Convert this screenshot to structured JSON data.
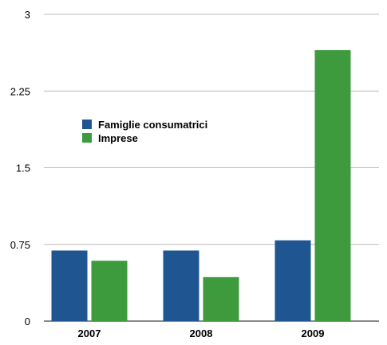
{
  "chart_data": {
    "type": "bar",
    "title": "",
    "xlabel": "",
    "ylabel": "",
    "categories": [
      "2007",
      "2008",
      "2009"
    ],
    "series": [
      {
        "name": "Famiglie consumatrici",
        "color": "#1f5591",
        "values": [
          0.69,
          0.69,
          0.79
        ]
      },
      {
        "name": "Imprese",
        "color": "#3d9a3d",
        "values": [
          0.59,
          0.43,
          2.65
        ]
      }
    ],
    "ylim": [
      0,
      3
    ],
    "yticks": [
      0,
      0.75,
      1.5,
      2.25,
      3
    ],
    "ytick_labels": [
      "0",
      "0.75",
      "1.5",
      "2.25",
      "3"
    ],
    "grid": true,
    "legend_position": "left"
  }
}
